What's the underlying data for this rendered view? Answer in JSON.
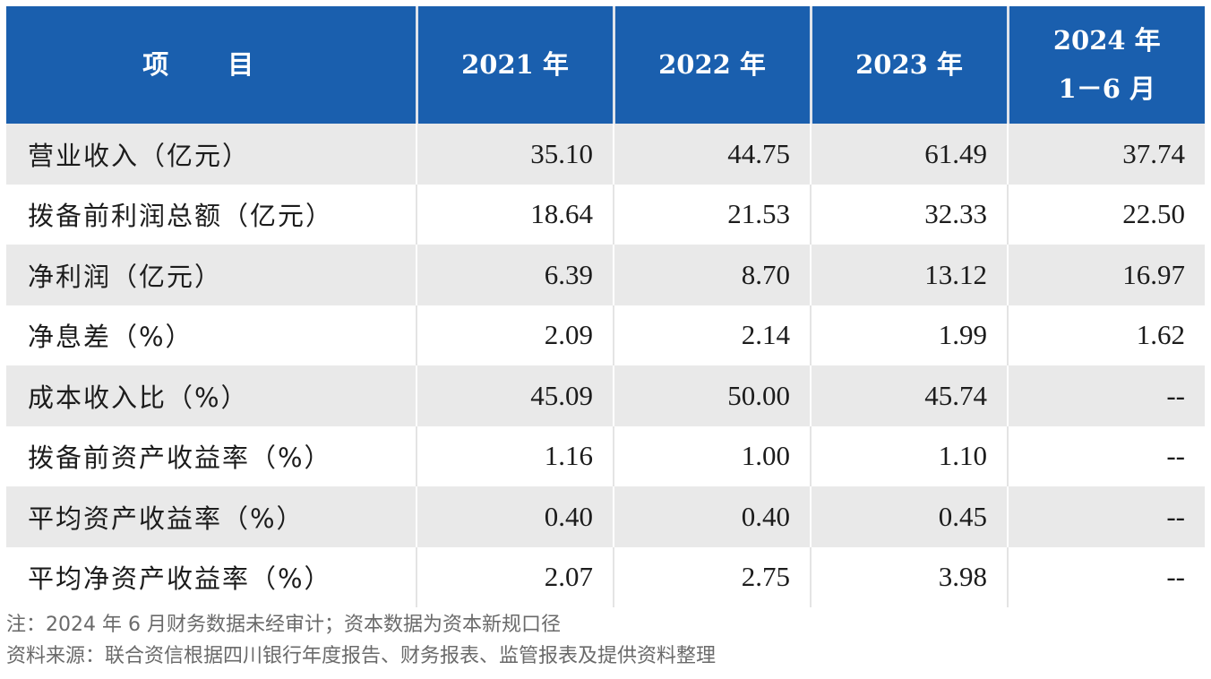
{
  "table": {
    "headers": [
      {
        "line1": "项 目",
        "line2": ""
      },
      {
        "line1": "2021 年",
        "line2": ""
      },
      {
        "line1": "2022 年",
        "line2": ""
      },
      {
        "line1": "2023 年",
        "line2": ""
      },
      {
        "line1": "2024 年",
        "line2": "1－6 月"
      }
    ],
    "rows": [
      {
        "label": "营业收入（亿元）",
        "values": [
          "35.10",
          "44.75",
          "61.49",
          "37.74"
        ]
      },
      {
        "label": "拨备前利润总额（亿元）",
        "values": [
          "18.64",
          "21.53",
          "32.33",
          "22.50"
        ]
      },
      {
        "label": "净利润（亿元）",
        "values": [
          "6.39",
          "8.70",
          "13.12",
          "16.97"
        ]
      },
      {
        "label": "净息差（%）",
        "values": [
          "2.09",
          "2.14",
          "1.99",
          "1.62"
        ]
      },
      {
        "label": "成本收入比（%）",
        "values": [
          "45.09",
          "50.00",
          "45.74",
          "--"
        ]
      },
      {
        "label": "拨备前资产收益率（%）",
        "values": [
          "1.16",
          "1.00",
          "1.10",
          "--"
        ]
      },
      {
        "label": "平均资产收益率（%）",
        "values": [
          "0.40",
          "0.40",
          "0.45",
          "--"
        ]
      },
      {
        "label": "平均净资产收益率（%）",
        "values": [
          "2.07",
          "2.75",
          "3.98",
          "--"
        ]
      }
    ]
  },
  "notes": {
    "note": "注：2024 年 6 月财务数据未经审计；资本数据为资本新规口径",
    "source": "资料来源：联合资信根据四川银行年度报告、财务报表、监管报表及提供资料整理"
  },
  "colors": {
    "header_bg": "#1a5fae",
    "header_text": "#ffffff",
    "stripe_bg": "#e9e9e9"
  }
}
